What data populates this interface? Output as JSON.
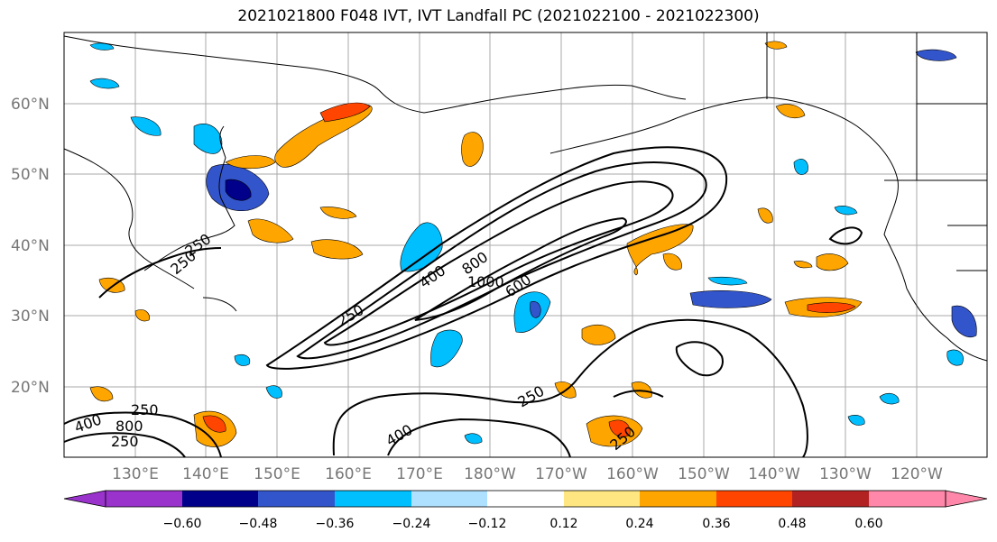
{
  "title": "2021021800 F048 IVT, IVT Landfall PC (2021022100 - 2021022300)",
  "lat_labels": [
    "60°N",
    "50°N",
    "40°N",
    "30°N",
    "20°N"
  ],
  "lon_labels": [
    "130°E",
    "140°E",
    "150°E",
    "160°E",
    "170°E",
    "180°W",
    "170°W",
    "160°W",
    "150°W",
    "140°W",
    "130°W",
    "120°W"
  ],
  "contour_labels": [
    "250",
    "400",
    "800",
    "1000",
    "600",
    "250",
    "250",
    "400",
    "250",
    "250",
    "400",
    "800",
    "250",
    "250"
  ],
  "colorbar": {
    "ticks": [
      "−0.60",
      "−0.48",
      "−0.36",
      "−0.24",
      "−0.12",
      "0.12",
      "0.24",
      "0.36",
      "0.48",
      "0.60"
    ],
    "colors": [
      "#9933cc",
      "#00008b",
      "#3355cc",
      "#00bfff",
      "#aee0ff",
      "#ffffff",
      "#ffe680",
      "#ffa500",
      "#ff4500",
      "#b22222",
      "#ff88aa"
    ]
  }
}
